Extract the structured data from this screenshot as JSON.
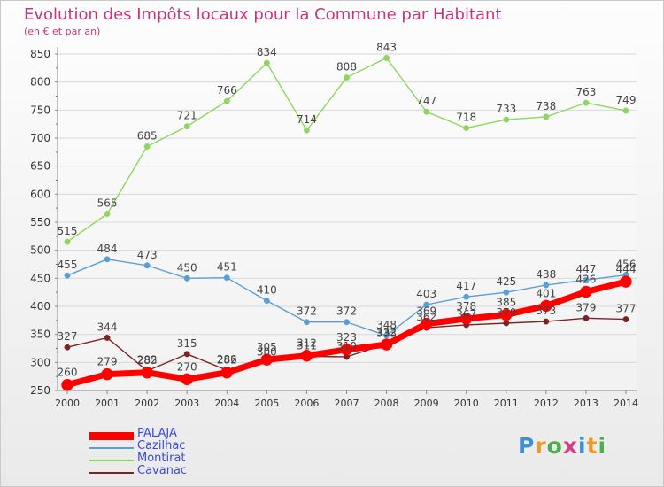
{
  "chart_data": {
    "type": "line",
    "title": "Evolution des Impôts locaux pour la Commune par Habitant",
    "subtitle": "(en € et par an)",
    "xlabel": "",
    "ylabel": "",
    "ylim": [
      250,
      850
    ],
    "yticks": [
      250,
      300,
      350,
      400,
      450,
      500,
      550,
      600,
      650,
      700,
      750,
      800,
      850
    ],
    "grid": "horizontal",
    "legend_position": "bottom-left",
    "x": [
      "2000",
      "2001",
      "2002",
      "2003",
      "2004",
      "2005",
      "2006",
      "2007",
      "2008",
      "2009",
      "2010",
      "2011",
      "2012",
      "2013",
      "2014"
    ],
    "series": [
      {
        "name": "Cavanac",
        "color": "#7a2525",
        "values": [
          327,
          344,
          285,
          315,
          286,
          300,
          311,
          310,
          333,
          362,
          367,
          370,
          373,
          379,
          377
        ]
      },
      {
        "name": "Montirat",
        "color": "#8ed65f",
        "values": [
          515,
          565,
          685,
          721,
          766,
          834,
          714,
          808,
          843,
          747,
          718,
          733,
          738,
          763,
          749
        ]
      },
      {
        "name": "Cazilhac",
        "color": "#5a9fd4",
        "values": [
          455,
          484,
          473,
          450,
          451,
          410,
          372,
          372,
          348,
          403,
          417,
          425,
          438,
          447,
          456
        ]
      },
      {
        "name": "PALAJA",
        "color": "#ff0000",
        "values": [
          260,
          279,
          282,
          270,
          282,
          305,
          312,
          323,
          332,
          369,
          378,
          385,
          401,
          426,
          444
        ]
      }
    ],
    "labels_shown": {
      "Cavanac": [
        "327",
        "344",
        "285",
        "315",
        "286",
        "300",
        "311",
        "310",
        "333",
        "362",
        "367",
        "370",
        "373",
        "379",
        "377"
      ],
      "Montirat": [
        "515",
        "565",
        "685",
        "721",
        "766",
        "834",
        "714",
        "808",
        "843",
        "747",
        "718",
        "733",
        "738",
        "763",
        "749"
      ],
      "Cazilhac": [
        "455",
        "484",
        "473",
        "450",
        "451",
        "410",
        "372",
        "372",
        "348",
        "403",
        "417",
        "425",
        "438",
        "447",
        "456"
      ],
      "PALAJA": [
        "260",
        "279",
        "282",
        "270",
        "282",
        "305",
        "312",
        "323",
        "332",
        "369",
        "378",
        "385",
        "401",
        "426",
        "444"
      ]
    }
  },
  "legend": {
    "items": [
      {
        "label": "PALAJA",
        "color": "#ff0000"
      },
      {
        "label": "Cazilhac",
        "color": "#5a9fd4"
      },
      {
        "label": "Montirat",
        "color": "#8ed65f"
      },
      {
        "label": "Cavanac",
        "color": "#7a2525"
      }
    ]
  },
  "logo": {
    "text": "Proxiti"
  }
}
